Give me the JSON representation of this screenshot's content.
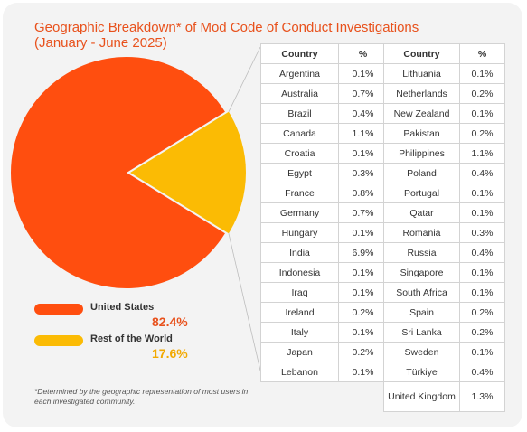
{
  "chart_data": {
    "type": "pie",
    "title": "Geographic Breakdown* of Mod Code of Conduct Investigations",
    "subtitle": "(January - June 2025)",
    "slices": [
      {
        "label": "United States",
        "value": 82.4,
        "value_text": "82.4%",
        "color": "#ff4e0f",
        "value_color": "#e8511c"
      },
      {
        "label": "Rest of the World",
        "value": 17.6,
        "value_text": "17.6%",
        "color": "#fbbb04",
        "value_color": "#f2a900"
      }
    ],
    "legend_position": "bottom-left"
  },
  "footnote": "*Determined by the geographic representation of most users in each investigated community.",
  "table": {
    "headers": [
      "Country",
      "%"
    ],
    "left_rows": [
      [
        "Argentina",
        "0.1%"
      ],
      [
        "Australia",
        "0.7%"
      ],
      [
        "Brazil",
        "0.4%"
      ],
      [
        "Canada",
        "1.1%"
      ],
      [
        "Croatia",
        "0.1%"
      ],
      [
        "Egypt",
        "0.3%"
      ],
      [
        "France",
        "0.8%"
      ],
      [
        "Germany",
        "0.7%"
      ],
      [
        "Hungary",
        "0.1%"
      ],
      [
        "India",
        "6.9%"
      ],
      [
        "Indonesia",
        "0.1%"
      ],
      [
        "Iraq",
        "0.1%"
      ],
      [
        "Ireland",
        "0.2%"
      ],
      [
        "Italy",
        "0.1%"
      ],
      [
        "Japan",
        "0.2%"
      ],
      [
        "Lebanon",
        "0.1%"
      ]
    ],
    "right_rows": [
      [
        "Lithuania",
        "0.1%"
      ],
      [
        "Netherlands",
        "0.2%"
      ],
      [
        "New Zealand",
        "0.1%"
      ],
      [
        "Pakistan",
        "0.2%"
      ],
      [
        "Philippines",
        "1.1%"
      ],
      [
        "Poland",
        "0.4%"
      ],
      [
        "Portugal",
        "0.1%"
      ],
      [
        "Qatar",
        "0.1%"
      ],
      [
        "Romania",
        "0.3%"
      ],
      [
        "Russia",
        "0.4%"
      ],
      [
        "Singapore",
        "0.1%"
      ],
      [
        "South Africa",
        "0.1%"
      ],
      [
        "Spain",
        "0.2%"
      ],
      [
        "Sri Lanka",
        "0.2%"
      ],
      [
        "Sweden",
        "0.1%"
      ],
      [
        "Türkiye",
        "0.4%"
      ],
      [
        "United Kingdom",
        "1.3%"
      ]
    ]
  }
}
